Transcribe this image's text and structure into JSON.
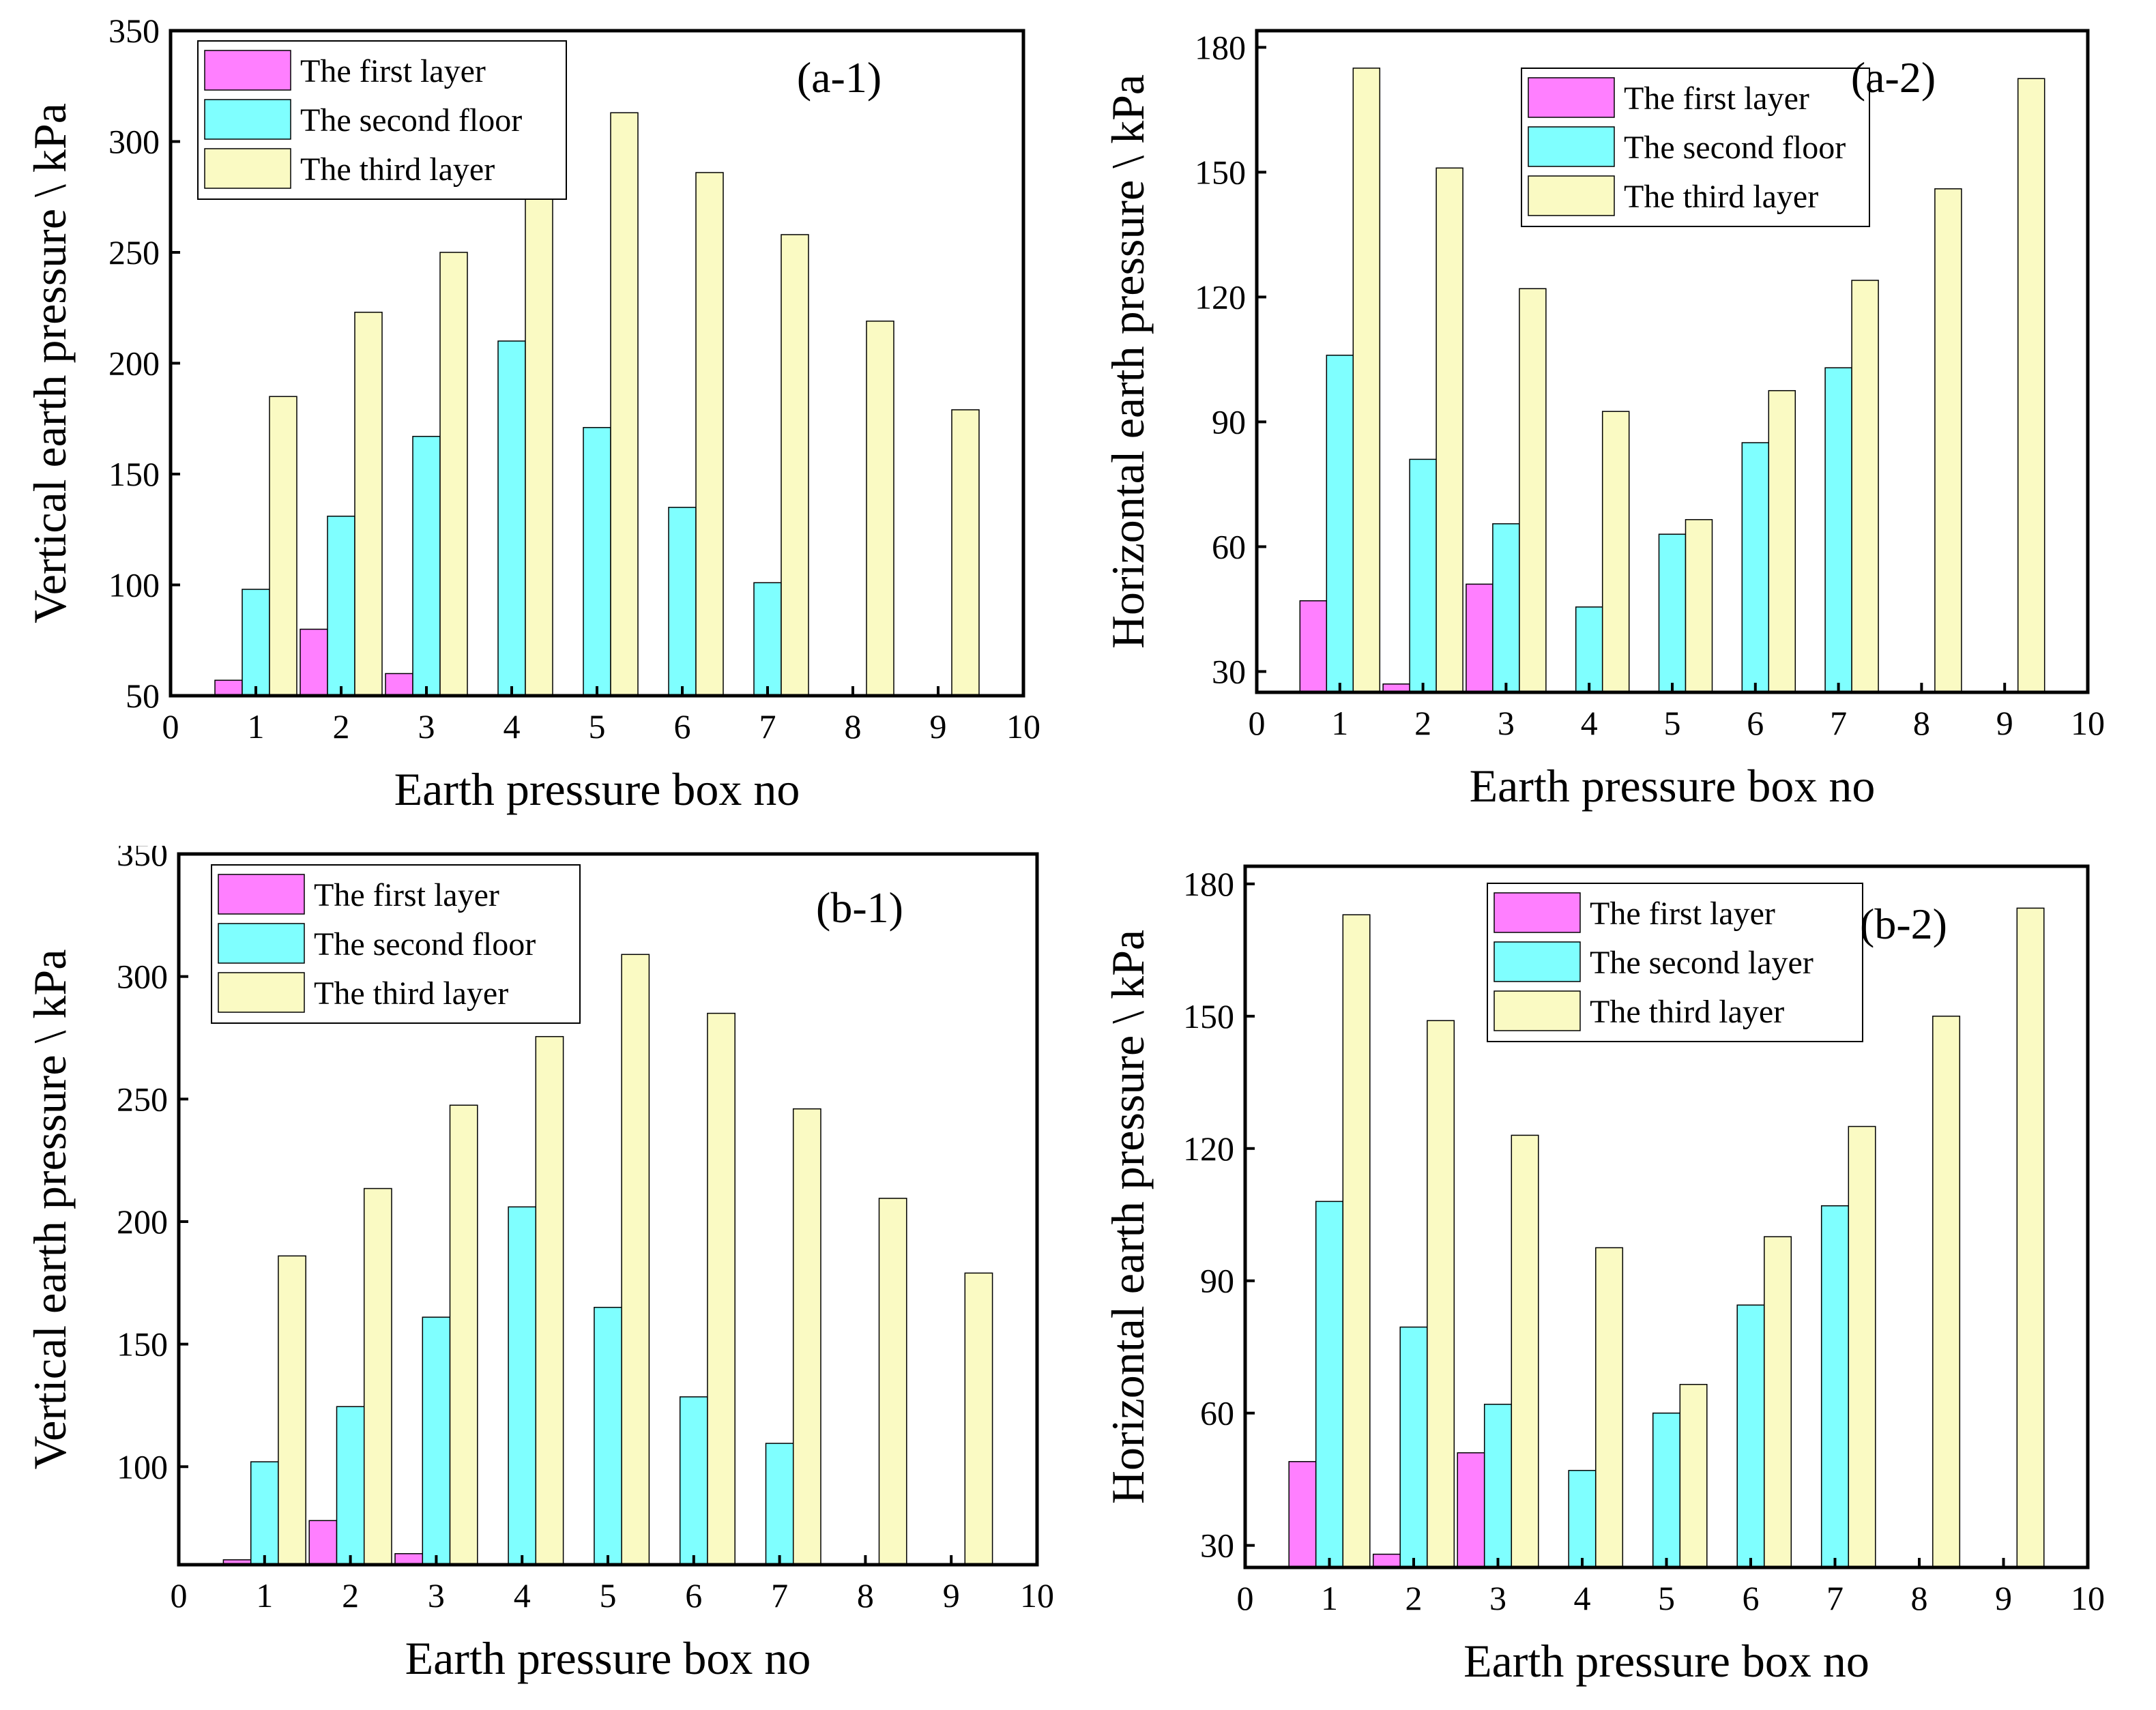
{
  "colors": {
    "first": "#ff7fff",
    "second": "#7fffff",
    "third": "#fafac3",
    "stroke": "#000000"
  },
  "chart_data": [
    {
      "type": "bar",
      "panel": "(a-1)",
      "xlabel": "Earth pressure box no",
      "ylabel": "Vertical earth pressure \\ kPa",
      "xlim": [
        0,
        10
      ],
      "ylim": [
        50,
        350
      ],
      "xticks": [
        "0",
        "1",
        "2",
        "3",
        "4",
        "5",
        "6",
        "7",
        "8",
        "9",
        "10"
      ],
      "yticks": [
        "50",
        "100",
        "150",
        "200",
        "250",
        "300",
        "350"
      ],
      "legend_position": "top-left",
      "x": [
        1,
        2,
        3,
        4,
        5,
        6,
        7,
        8,
        9
      ],
      "series": [
        {
          "name": "The first layer",
          "color": "#ff7fff",
          "values": [
            57,
            80,
            60,
            null,
            null,
            null,
            null,
            null,
            null
          ]
        },
        {
          "name": "The second floor",
          "color": "#7fffff",
          "values": [
            98,
            131,
            167,
            210,
            171,
            135,
            101,
            null,
            null
          ]
        },
        {
          "name": "The third layer",
          "color": "#fafac3",
          "values": [
            185,
            223,
            250,
            280,
            313,
            286,
            258,
            219,
            179
          ]
        }
      ]
    },
    {
      "type": "bar",
      "panel": "(a-2)",
      "xlabel": "Earth pressure box no",
      "ylabel": "Horizontal earth pressure \\ kPa",
      "xlim": [
        0,
        10
      ],
      "ylim": [
        25,
        184
      ],
      "xticks": [
        "0",
        "1",
        "2",
        "3",
        "4",
        "5",
        "6",
        "7",
        "8",
        "9",
        "10"
      ],
      "yticks": [
        "30",
        "60",
        "90",
        "120",
        "150",
        "180"
      ],
      "legend_position": "top-center",
      "x": [
        1,
        2,
        3,
        4,
        5,
        6,
        7,
        8,
        9
      ],
      "series": [
        {
          "name": "The first layer",
          "color": "#ff7fff",
          "values": [
            47,
            27,
            51,
            null,
            null,
            null,
            null,
            null,
            null
          ]
        },
        {
          "name": "The second floor",
          "color": "#7fffff",
          "values": [
            106,
            81,
            65.5,
            45.5,
            63,
            85,
            103,
            null,
            null
          ]
        },
        {
          "name": "The third layer",
          "color": "#fafac3",
          "values": [
            175,
            151,
            122,
            92.5,
            66.5,
            97.5,
            124,
            146,
            172.5
          ]
        }
      ]
    },
    {
      "type": "bar",
      "panel": "(b-1)",
      "xlabel": "Earth pressure box no",
      "ylabel": "Vertical earth pressure \\ kPa",
      "xlim": [
        0,
        10
      ],
      "ylim": [
        60,
        350
      ],
      "xticks": [
        "0",
        "1",
        "2",
        "3",
        "4",
        "5",
        "6",
        "7",
        "8",
        "9",
        "10"
      ],
      "yticks": [
        "100",
        "150",
        "200",
        "250",
        "300",
        "350"
      ],
      "legend_position": "top-left",
      "x": [
        1,
        2,
        3,
        4,
        5,
        6,
        7,
        8,
        9
      ],
      "series": [
        {
          "name": "The first layer",
          "color": "#ff7fff",
          "values": [
            62,
            78,
            64.5,
            null,
            null,
            null,
            null,
            null,
            null
          ]
        },
        {
          "name": "The second floor",
          "color": "#7fffff",
          "values": [
            102,
            124.5,
            161,
            206,
            165,
            128.5,
            109.5,
            null,
            null
          ]
        },
        {
          "name": "The third layer",
          "color": "#fafac3",
          "values": [
            186,
            213.5,
            247.5,
            275.5,
            309,
            285,
            246,
            209.5,
            179
          ]
        }
      ]
    },
    {
      "type": "bar",
      "panel": "(b-2)",
      "xlabel": "Earth pressure box no",
      "ylabel": "Horizontal earth pressure \\ kPa",
      "xlim": [
        0,
        10
      ],
      "ylim": [
        25,
        184
      ],
      "xticks": [
        "0",
        "1",
        "2",
        "3",
        "4",
        "5",
        "6",
        "7",
        "8",
        "9",
        "10"
      ],
      "yticks": [
        "30",
        "60",
        "90",
        "120",
        "150",
        "180"
      ],
      "legend_position": "top-center",
      "x": [
        1,
        2,
        3,
        4,
        5,
        6,
        7,
        8,
        9
      ],
      "series": [
        {
          "name": "The first layer",
          "color": "#ff7fff",
          "values": [
            49,
            28,
            51,
            null,
            null,
            null,
            null,
            null,
            null
          ]
        },
        {
          "name": "The second layer",
          "color": "#7fffff",
          "values": [
            108,
            79.5,
            62,
            47,
            60,
            84.5,
            107,
            null,
            null
          ]
        },
        {
          "name": "The third layer",
          "color": "#fafac3",
          "values": [
            173,
            149,
            123,
            97.5,
            66.5,
            100,
            125,
            150,
            174.5
          ]
        }
      ]
    }
  ]
}
